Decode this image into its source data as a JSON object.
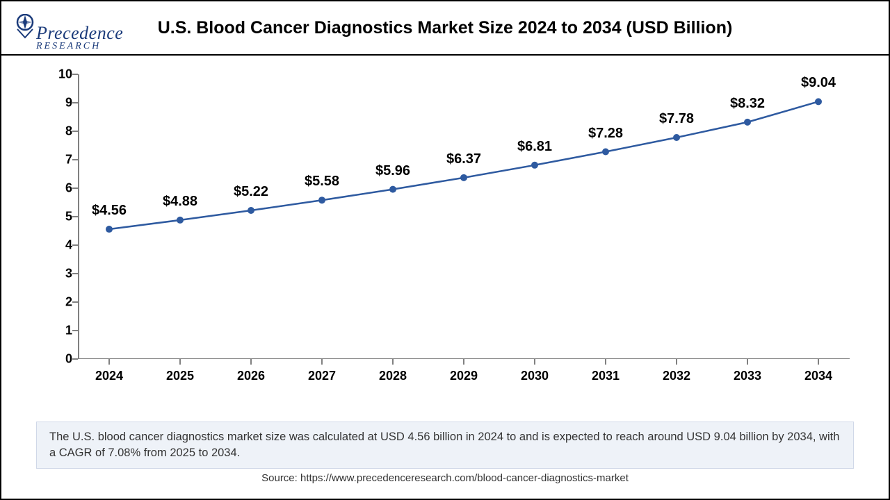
{
  "logo": {
    "line1": "Precedence",
    "line2": "RESEARCH",
    "icon_color": "#1a3a7a"
  },
  "chart": {
    "type": "line",
    "title": "U.S. Blood Cancer Diagnostics Market Size 2024 to 2034 (USD Billion)",
    "categories": [
      "2024",
      "2025",
      "2026",
      "2027",
      "2028",
      "2029",
      "2030",
      "2031",
      "2032",
      "2033",
      "2034"
    ],
    "values": [
      4.56,
      4.88,
      5.22,
      5.58,
      5.96,
      6.37,
      6.81,
      7.28,
      7.78,
      8.32,
      9.04
    ],
    "labels": [
      "$4.56",
      "$4.88",
      "$5.22",
      "$5.58",
      "$5.96",
      "$6.37",
      "$6.81",
      "$7.28",
      "$7.78",
      "$8.32",
      "$9.04"
    ],
    "line_color": "#2e5aa0",
    "marker_color": "#2e5aa0",
    "marker_size": 5,
    "line_width": 2.5,
    "ylim": [
      0,
      10
    ],
    "ytick_step": 1,
    "yticks": [
      0,
      1,
      2,
      3,
      4,
      5,
      6,
      7,
      8,
      9,
      10
    ],
    "axis_color": "#808080",
    "background_color": "#ffffff",
    "title_fontsize": 25,
    "label_fontsize": 20,
    "tick_fontsize": 18,
    "font_family": "Arial"
  },
  "caption": "The U.S. blood cancer diagnostics market size was calculated at USD 4.56 billion in 2024 to and is expected to reach around USD 9.04 billion by 2034, with a CAGR of 7.08% from 2025 to 2034.",
  "source": "Source: https://www.precedenceresearch.com/blood-cancer-diagnostics-market",
  "caption_bg": "#eef2f8",
  "caption_border": "#d0d8e8"
}
